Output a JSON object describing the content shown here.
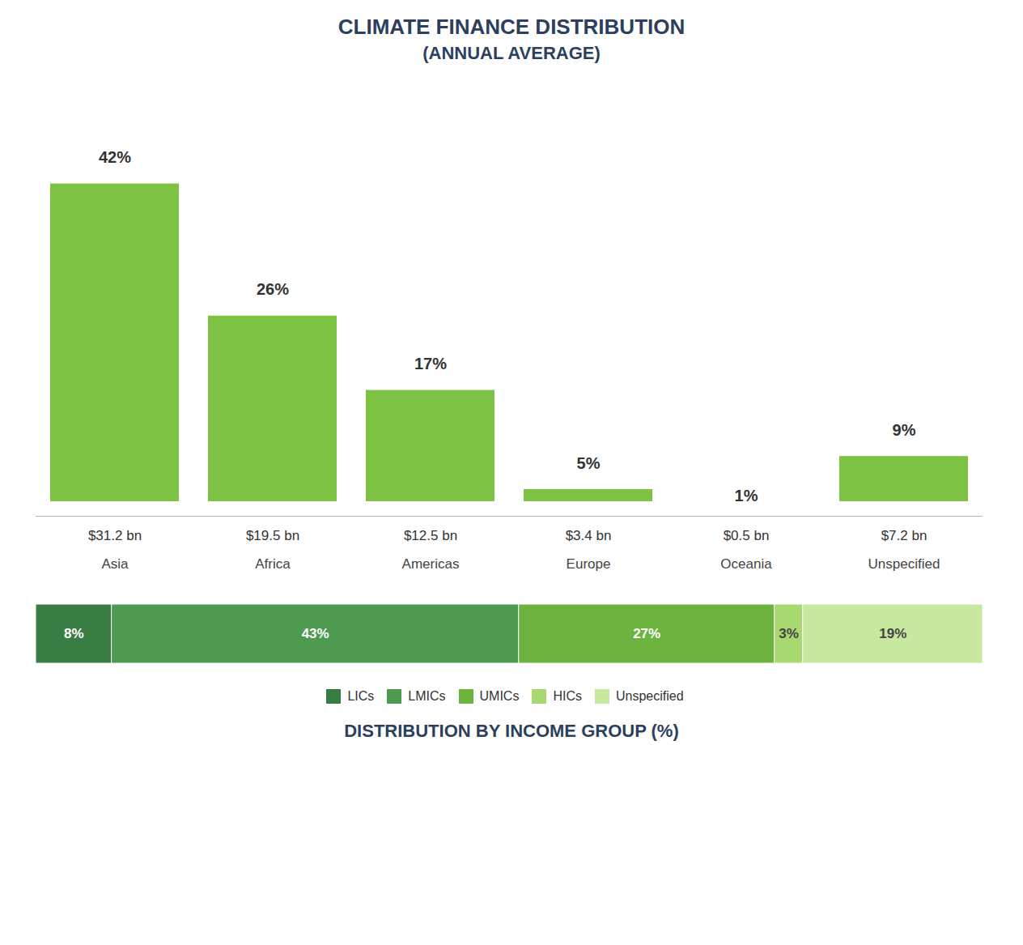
{
  "chart_data": [
    {
      "type": "bar",
      "title": "CLIMATE FINANCE DISTRIBUTION",
      "subtitle": "(ANNUAL AVERAGE)",
      "categories": [
        "Asia",
        "Africa",
        "Americas",
        "Europe",
        "Oceania",
        "Unspecified"
      ],
      "values": [
        42,
        26,
        17,
        5,
        1,
        9
      ],
      "value_labels": [
        "42%",
        "26%",
        "17%",
        "5%",
        "1%",
        "9%"
      ],
      "amounts": [
        31.2,
        19.5,
        12.5,
        3.4,
        0.5,
        7.2
      ],
      "amount_labels": [
        "$31.2 bn",
        "$19.5 bn",
        "$12.5 bn",
        "$3.4 bn",
        "$0.5 bn",
        "$7.2 bn"
      ],
      "color": "#7dc242",
      "ylim": [
        0,
        50
      ],
      "grid": false,
      "data_labels": true,
      "tick_labels": "x"
    },
    {
      "type": "bar",
      "orientation": "horizontal",
      "stacked": true,
      "title": "DISTRIBUTION BY INCOME GROUP (%)",
      "categories": [
        null
      ],
      "series": [
        {
          "name": "LICs",
          "color": "#3a7d44",
          "values": [
            8
          ],
          "value_labels": [
            "8%"
          ]
        },
        {
          "name": "LMICs",
          "color": "#4e9a51",
          "values": [
            43
          ],
          "value_labels": [
            "43%"
          ]
        },
        {
          "name": "UMICs",
          "color": "#6db33f",
          "values": [
            27
          ],
          "value_labels": [
            "27%"
          ]
        },
        {
          "name": "HICs",
          "color": "#a8d870",
          "values": [
            3
          ],
          "value_labels": [
            "3%"
          ]
        },
        {
          "name": "Unspecified",
          "color": "#c8e8a0",
          "values": [
            19
          ],
          "value_labels": [
            "19%"
          ]
        }
      ],
      "xlim": [
        0,
        100
      ],
      "legend": "bottom",
      "data_labels": true,
      "tick_labels": false,
      "grid": false
    }
  ]
}
